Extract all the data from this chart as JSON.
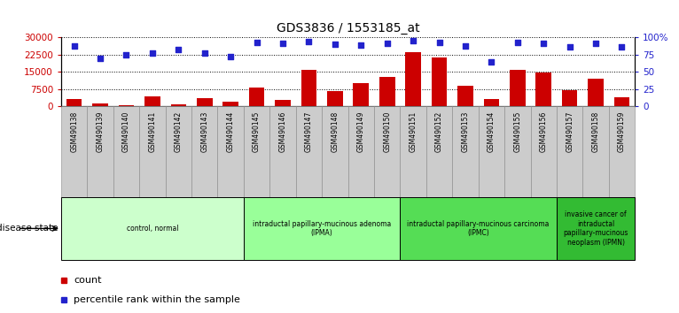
{
  "title": "GDS3836 / 1553185_at",
  "samples": [
    "GSM490138",
    "GSM490139",
    "GSM490140",
    "GSM490141",
    "GSM490142",
    "GSM490143",
    "GSM490144",
    "GSM490145",
    "GSM490146",
    "GSM490147",
    "GSM490148",
    "GSM490149",
    "GSM490150",
    "GSM490151",
    "GSM490152",
    "GSM490153",
    "GSM490154",
    "GSM490155",
    "GSM490156",
    "GSM490157",
    "GSM490158",
    "GSM490159"
  ],
  "counts": [
    3200,
    1200,
    500,
    4200,
    1100,
    3500,
    2200,
    8200,
    3000,
    16000,
    6500,
    10200,
    12800,
    23500,
    21500,
    9000,
    3200,
    16000,
    14800,
    7200,
    12000,
    3800
  ],
  "percentiles": [
    88,
    70,
    75,
    77,
    82,
    77,
    73,
    93,
    91,
    94,
    90,
    89,
    91,
    96,
    93,
    88,
    65,
    93,
    92,
    87,
    92,
    86
  ],
  "bar_color": "#cc0000",
  "dot_color": "#2222cc",
  "ylim_left": [
    0,
    30000
  ],
  "ylim_right": [
    0,
    100
  ],
  "yticks_left": [
    0,
    7500,
    15000,
    22500,
    30000
  ],
  "yticks_right": [
    0,
    25,
    50,
    75,
    100
  ],
  "ytick_labels_right": [
    "0",
    "25",
    "50",
    "75",
    "100%"
  ],
  "groups": [
    {
      "label": "control, normal",
      "start": 0,
      "end": 7,
      "color": "#ccffcc"
    },
    {
      "label": "intraductal papillary-mucinous adenoma\n(IPMA)",
      "start": 7,
      "end": 13,
      "color": "#99ff99"
    },
    {
      "label": "intraductal papillary-mucinous carcinoma\n(IPMC)",
      "start": 13,
      "end": 19,
      "color": "#55dd55"
    },
    {
      "label": "invasive cancer of\nintraductal\npapillary-mucinous\nneoplasm (IPMN)",
      "start": 19,
      "end": 22,
      "color": "#33bb33"
    }
  ],
  "disease_state_label": "disease state",
  "legend_count_label": "count",
  "legend_pct_label": "percentile rank within the sample",
  "background_color": "#ffffff",
  "tick_area_color": "#cccccc",
  "dotted_line_color": "#000000"
}
